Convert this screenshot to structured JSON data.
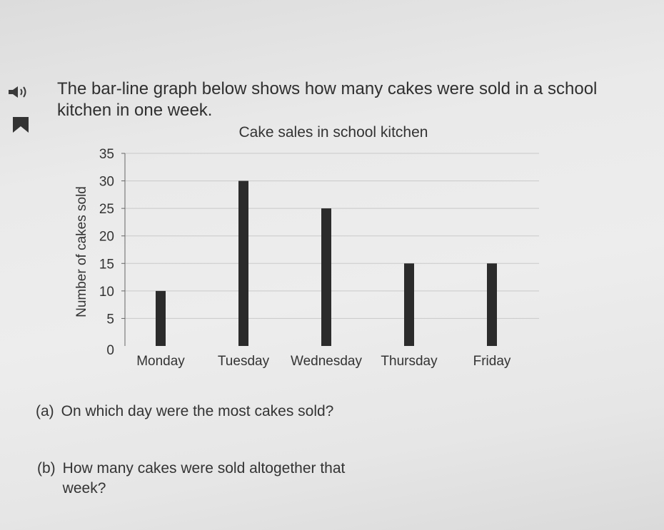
{
  "intro": {
    "text": "The bar-line graph below shows how many cakes were sold in a school kitchen in one week."
  },
  "icons": {
    "audio": "speaker-icon",
    "bookmark": "bookmark-icon"
  },
  "chart_data": {
    "type": "bar",
    "title": "Cake sales in school kitchen",
    "xlabel": "",
    "ylabel": "Number of cakes sold",
    "categories": [
      "Monday",
      "Tuesday",
      "Wednesday",
      "Thursday",
      "Friday"
    ],
    "values": [
      10,
      30,
      25,
      15,
      15
    ],
    "ylim": [
      0,
      35
    ],
    "yticks": [
      0,
      5,
      10,
      15,
      20,
      25,
      30,
      35
    ],
    "grid": true,
    "bar_color": "#2b2b2b"
  },
  "questions": [
    {
      "label": "(a)",
      "text": "On which day were the most cakes sold?"
    },
    {
      "label": "(b)",
      "text": "How many cakes were sold altogether that week?"
    }
  ]
}
